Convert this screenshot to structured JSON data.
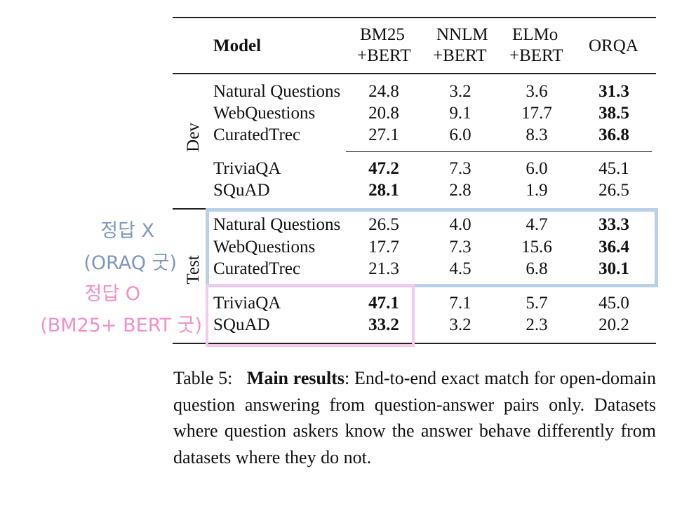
{
  "table": {
    "header": {
      "model": "Model",
      "columns": [
        {
          "line1": "BM25",
          "line2": "+BERT"
        },
        {
          "line1": "NNLM",
          "line2": "+BERT"
        },
        {
          "line1": "ELMo",
          "line2": "+BERT"
        },
        {
          "line1": "ORQA",
          "line2": ""
        }
      ]
    },
    "groups": [
      {
        "label": "Dev",
        "rows": [
          {
            "model": "Natural Questions",
            "values": [
              "24.8",
              "3.2",
              "3.6",
              "31.3"
            ],
            "bold_col": 3
          },
          {
            "model": "WebQuestions",
            "values": [
              "20.8",
              "9.1",
              "17.7",
              "38.5"
            ],
            "bold_col": 3
          },
          {
            "model": "CuratedTrec",
            "values": [
              "27.1",
              "6.0",
              "8.3",
              "36.8"
            ],
            "bold_col": 3
          },
          {
            "model": "TriviaQA",
            "values": [
              "47.2",
              "7.3",
              "6.0",
              "45.1"
            ],
            "bold_col": 0
          },
          {
            "model": "SQuAD",
            "values": [
              "28.1",
              "2.8",
              "1.9",
              "26.5"
            ],
            "bold_col": 0
          }
        ]
      },
      {
        "label": "Test",
        "rows": [
          {
            "model": "Natural Questions",
            "values": [
              "26.5",
              "4.0",
              "4.7",
              "33.3"
            ],
            "bold_col": 3
          },
          {
            "model": "WebQuestions",
            "values": [
              "17.7",
              "7.3",
              "15.6",
              "36.4"
            ],
            "bold_col": 3
          },
          {
            "model": "CuratedTrec",
            "values": [
              "21.3",
              "4.5",
              "6.8",
              "30.1"
            ],
            "bold_col": 3
          },
          {
            "model": "TriviaQA",
            "values": [
              "47.1",
              "7.1",
              "5.7",
              "45.0"
            ],
            "bold_col": 0
          },
          {
            "model": "SQuAD",
            "values": [
              "33.2",
              "3.2",
              "2.3",
              "20.2"
            ],
            "bold_col": 0
          }
        ]
      }
    ]
  },
  "annotations": {
    "blue": {
      "line1": "정답 X",
      "line2": "(ORAQ 굿)",
      "color": "#7f97c0",
      "box_color": "#b8d0e8"
    },
    "pink": {
      "line1": "정답 O",
      "line2": "(BM25+ BERT 굿)",
      "color": "#f08fc8",
      "box_color": "#f6c8ec"
    }
  },
  "caption": {
    "label": "Table 5:",
    "title": "Main results",
    "text": ":  End-to-end exact match for open-domain question answering from question-answer pairs only.  Datasets where question askers know the answer behave differently from datasets where they do not."
  }
}
